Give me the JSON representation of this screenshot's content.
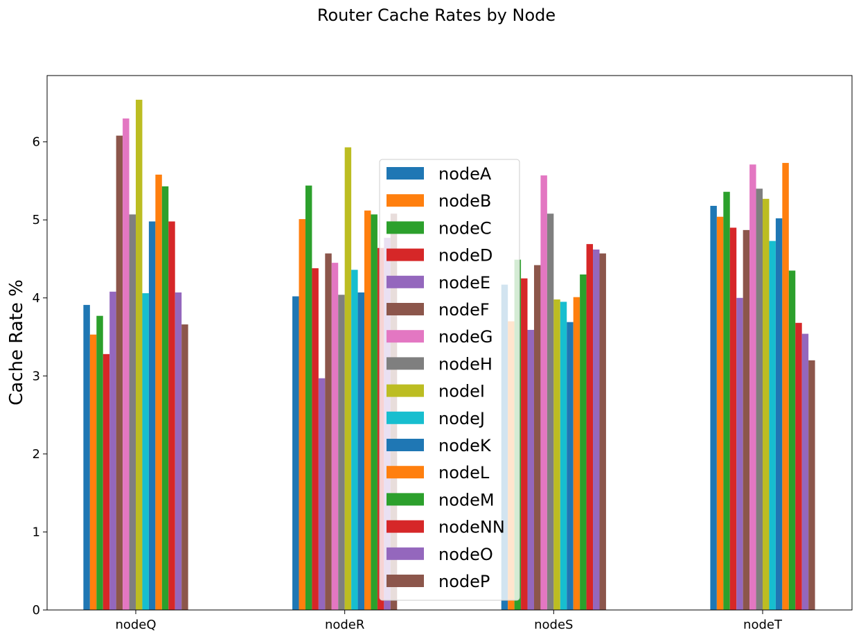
{
  "chart_data": {
    "type": "bar",
    "title": "Router Cache Rates by Node",
    "xlabel": "",
    "ylabel": "Cache Rate %",
    "categories": [
      "nodeQ",
      "nodeR",
      "nodeS",
      "nodeT"
    ],
    "ylim": [
      0,
      6.85
    ],
    "yticks": [
      0,
      1,
      2,
      3,
      4,
      5,
      6
    ],
    "grid": false,
    "legend_position": "center",
    "series": [
      {
        "name": "nodeA",
        "color": "#1f77b4",
        "values": [
          3.91,
          4.02,
          4.17,
          5.18
        ]
      },
      {
        "name": "nodeB",
        "color": "#ff7f0e",
        "values": [
          3.53,
          5.01,
          3.7,
          5.04
        ]
      },
      {
        "name": "nodeC",
        "color": "#2ca02c",
        "values": [
          3.77,
          5.44,
          4.49,
          5.36
        ]
      },
      {
        "name": "nodeD",
        "color": "#d62728",
        "values": [
          3.28,
          4.38,
          4.25,
          4.9
        ]
      },
      {
        "name": "nodeE",
        "color": "#9467bd",
        "values": [
          4.08,
          2.97,
          3.59,
          4.0
        ]
      },
      {
        "name": "nodeF",
        "color": "#8c564b",
        "values": [
          6.08,
          4.57,
          4.42,
          4.87
        ]
      },
      {
        "name": "nodeG",
        "color": "#e377c2",
        "values": [
          6.3,
          4.45,
          5.57,
          5.71
        ]
      },
      {
        "name": "nodeH",
        "color": "#7f7f7f",
        "values": [
          5.07,
          4.04,
          5.08,
          5.4
        ]
      },
      {
        "name": "nodeI",
        "color": "#bcbd22",
        "values": [
          6.54,
          5.93,
          3.98,
          5.27
        ]
      },
      {
        "name": "nodeJ",
        "color": "#17becf",
        "values": [
          4.06,
          4.36,
          3.95,
          4.73
        ]
      },
      {
        "name": "nodeK",
        "color": "#1f77b4",
        "values": [
          4.98,
          4.07,
          3.69,
          5.02
        ]
      },
      {
        "name": "nodeL",
        "color": "#ff7f0e",
        "values": [
          5.58,
          5.12,
          4.01,
          5.73
        ]
      },
      {
        "name": "nodeM",
        "color": "#2ca02c",
        "values": [
          5.43,
          5.07,
          4.3,
          4.35
        ]
      },
      {
        "name": "nodeNN",
        "color": "#d62728",
        "values": [
          4.98,
          4.64,
          4.69,
          3.68
        ]
      },
      {
        "name": "nodeO",
        "color": "#9467bd",
        "values": [
          4.07,
          4.77,
          4.62,
          3.54
        ]
      },
      {
        "name": "nodeP",
        "color": "#8c564b",
        "values": [
          3.66,
          5.08,
          4.57,
          3.2
        ]
      }
    ]
  }
}
